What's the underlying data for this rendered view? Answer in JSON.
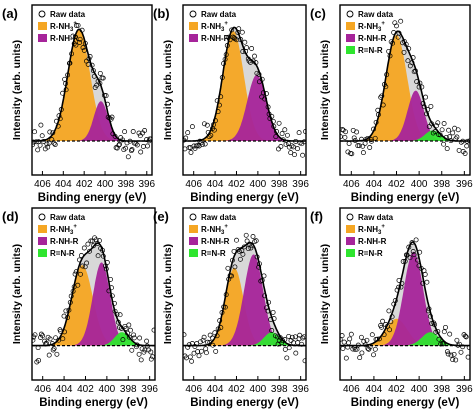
{
  "figure": {
    "legend_raw": "Raw data",
    "shared": {
      "xlabel": "Binding energy (eV)",
      "ylabel": "Intensity (arb. units)",
      "xticks": [
        406,
        404,
        402,
        400,
        398,
        396
      ],
      "xlim": [
        407,
        395.5
      ],
      "x_reversed": true,
      "yticks_shown": false,
      "grid": false,
      "legend_position": "top-left"
    },
    "colors": {
      "R-NH3+": "#F5A623",
      "R-NH-R": "#A6249A",
      "R=N-R": "#2EE52E",
      "envelope": "#D8D8D8",
      "fit": "#000000",
      "raw_marker": "#000000",
      "baseline": "#000000"
    }
  },
  "chart_data": [
    {
      "panel": "(a)",
      "type": "area",
      "components": [
        {
          "label": "R-NH3+",
          "center": 402.5,
          "fwhm": 2.5,
          "height": 0.84
        },
        {
          "label": "R-NH-R",
          "center": 400.4,
          "fwhm": 1.6,
          "height": 0.3
        }
      ]
    },
    {
      "panel": "(b)",
      "type": "area",
      "components": [
        {
          "label": "R-NH3+",
          "center": 402.3,
          "fwhm": 2.3,
          "height": 0.83
        },
        {
          "label": "R-NH-R",
          "center": 400.1,
          "fwhm": 2.1,
          "height": 0.5
        }
      ]
    },
    {
      "panel": "(c)",
      "type": "area",
      "components": [
        {
          "label": "R-NH3+",
          "center": 402.0,
          "fwhm": 2.2,
          "height": 0.8
        },
        {
          "label": "R-NH-R",
          "center": 400.3,
          "fwhm": 1.7,
          "height": 0.38
        },
        {
          "label": "R=N-R",
          "center": 398.8,
          "fwhm": 1.6,
          "height": 0.08
        }
      ]
    },
    {
      "panel": "(d)",
      "type": "area",
      "components": [
        {
          "label": "R-NH3+",
          "center": 402.3,
          "fwhm": 2.3,
          "height": 0.6
        },
        {
          "label": "R-NH-R",
          "center": 400.5,
          "fwhm": 1.9,
          "height": 0.62
        },
        {
          "label": "R=N-R",
          "center": 398.6,
          "fwhm": 1.6,
          "height": 0.1
        }
      ]
    },
    {
      "panel": "(e)",
      "type": "area",
      "components": [
        {
          "label": "R-NH3+",
          "center": 402.2,
          "fwhm": 2.0,
          "height": 0.58
        },
        {
          "label": "R-NH-R",
          "center": 400.4,
          "fwhm": 2.1,
          "height": 0.68
        },
        {
          "label": "R=N-R",
          "center": 398.7,
          "fwhm": 1.7,
          "height": 0.1
        }
      ]
    },
    {
      "panel": "(f)",
      "type": "area",
      "components": [
        {
          "label": "R-NH3+",
          "center": 402.0,
          "fwhm": 2.2,
          "height": 0.2
        },
        {
          "label": "R-NH-R",
          "center": 400.5,
          "fwhm": 2.0,
          "height": 0.7
        },
        {
          "label": "R=N-R",
          "center": 399.0,
          "fwhm": 1.8,
          "height": 0.1
        }
      ]
    }
  ]
}
